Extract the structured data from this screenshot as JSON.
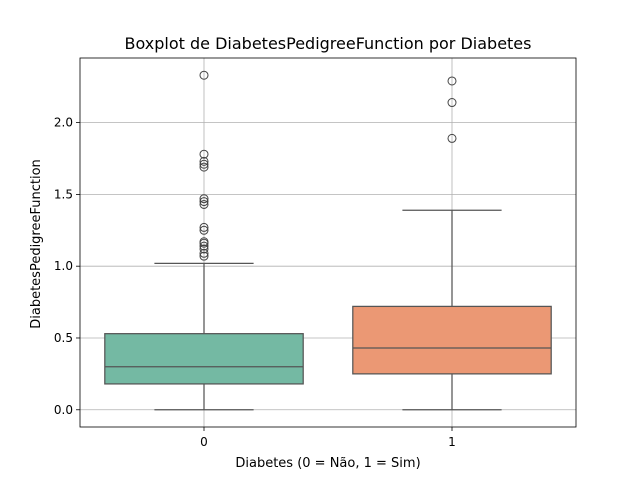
{
  "chart_data": {
    "type": "boxplot",
    "title": "Boxplot de DiabetesPedigreeFunction por Diabetes",
    "xlabel": "Diabetes (0 = Não, 1 = Sim)",
    "ylabel": "DiabetesPedigreeFunction",
    "categories": [
      "0",
      "1"
    ],
    "ylim": [
      -0.12,
      2.45
    ],
    "yticks": [
      0.0,
      0.5,
      1.0,
      1.5,
      2.0
    ],
    "ytick_labels": [
      "0.0",
      "0.5",
      "1.0",
      "1.5",
      "2.0"
    ],
    "grid": true,
    "boxes": [
      {
        "category": "0",
        "color": "#74b9a3",
        "whisker_low": 0.0,
        "q1": 0.18,
        "median": 0.3,
        "q3": 0.53,
        "whisker_high": 1.02,
        "outliers": [
          1.07,
          1.09,
          1.12,
          1.14,
          1.16,
          1.17,
          1.25,
          1.27,
          1.43,
          1.45,
          1.47,
          1.69,
          1.71,
          1.73,
          1.78,
          2.33
        ]
      },
      {
        "category": "1",
        "color": "#eb9874",
        "whisker_low": 0.0,
        "q1": 0.25,
        "median": 0.43,
        "q3": 0.72,
        "whisker_high": 1.39,
        "outliers": [
          1.89,
          2.14,
          2.29
        ]
      }
    ]
  }
}
